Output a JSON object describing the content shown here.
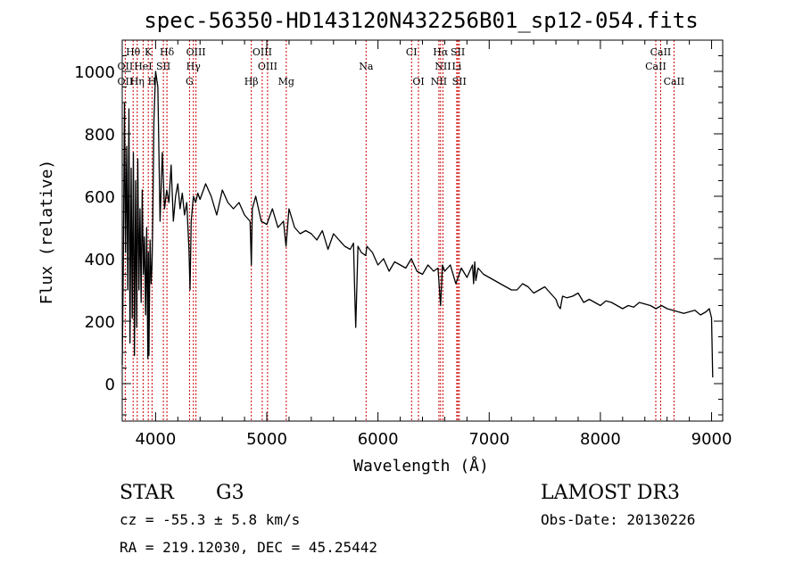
{
  "chart_data": {
    "type": "line",
    "title": "spec-56350-HD143120N432256B01_sp12-054.fits",
    "xlabel": "Wavelength (Å)",
    "ylabel": "Flux (relative)",
    "xlim": [
      3700,
      9100
    ],
    "ylim": [
      -120,
      1100
    ],
    "x_ticks": [
      4000,
      5000,
      6000,
      7000,
      8000,
      9000
    ],
    "y_ticks": [
      0,
      200,
      400,
      600,
      800,
      1000
    ],
    "series": [
      {
        "name": "flux",
        "x": [
          3700,
          3710,
          3720,
          3730,
          3740,
          3750,
          3760,
          3770,
          3780,
          3790,
          3800,
          3810,
          3820,
          3830,
          3840,
          3850,
          3860,
          3870,
          3880,
          3890,
          3900,
          3910,
          3920,
          3930,
          3935,
          3940,
          3950,
          3960,
          3968,
          3975,
          3985,
          4000,
          4020,
          4040,
          4060,
          4080,
          4100,
          4120,
          4140,
          4160,
          4180,
          4200,
          4220,
          4240,
          4260,
          4280,
          4300,
          4310,
          4320,
          4340,
          4360,
          4380,
          4400,
          4450,
          4500,
          4550,
          4600,
          4650,
          4700,
          4750,
          4800,
          4850,
          4861,
          4870,
          4900,
          4950,
          5000,
          5050,
          5100,
          5150,
          5173,
          5200,
          5250,
          5300,
          5350,
          5400,
          5450,
          5500,
          5550,
          5600,
          5650,
          5700,
          5750,
          5780,
          5790,
          5800,
          5820,
          5850,
          5890,
          5900,
          5950,
          6000,
          6050,
          6100,
          6150,
          6200,
          6250,
          6300,
          6350,
          6400,
          6450,
          6500,
          6540,
          6563,
          6580,
          6600,
          6650,
          6700,
          6750,
          6800,
          6850,
          6860,
          6870,
          6880,
          6900,
          6950,
          7000,
          7050,
          7100,
          7150,
          7200,
          7250,
          7300,
          7350,
          7400,
          7450,
          7500,
          7550,
          7600,
          7620,
          7640,
          7660,
          7700,
          7750,
          7800,
          7850,
          7900,
          7950,
          8000,
          8050,
          8100,
          8150,
          8200,
          8250,
          8300,
          8350,
          8400,
          8450,
          8500,
          8550,
          8600,
          8650,
          8700,
          8750,
          8800,
          8850,
          8900,
          8950,
          8980,
          9000,
          9010
        ],
        "y": [
          60,
          380,
          900,
          420,
          760,
          300,
          880,
          130,
          690,
          210,
          740,
          90,
          650,
          180,
          720,
          300,
          560,
          260,
          620,
          350,
          470,
          220,
          500,
          80,
          420,
          90,
          460,
          320,
          380,
          540,
          840,
          1000,
          950,
          520,
          740,
          560,
          620,
          580,
          700,
          520,
          600,
          640,
          560,
          610,
          540,
          580,
          430,
          300,
          520,
          600,
          580,
          610,
          590,
          640,
          600,
          540,
          620,
          580,
          560,
          580,
          540,
          520,
          380,
          560,
          600,
          520,
          510,
          560,
          500,
          520,
          440,
          560,
          500,
          480,
          490,
          480,
          460,
          490,
          430,
          480,
          460,
          440,
          430,
          450,
          300,
          180,
          440,
          420,
          410,
          440,
          420,
          380,
          400,
          360,
          390,
          380,
          370,
          400,
          360,
          350,
          380,
          360,
          370,
          250,
          380,
          360,
          380,
          320,
          370,
          340,
          380,
          320,
          390,
          330,
          370,
          350,
          340,
          330,
          320,
          310,
          300,
          300,
          320,
          310,
          290,
          300,
          310,
          290,
          270,
          250,
          240,
          280,
          275,
          280,
          290,
          260,
          270,
          260,
          250,
          265,
          260,
          250,
          240,
          250,
          245,
          260,
          255,
          250,
          240,
          250,
          240,
          235,
          230,
          225,
          230,
          235,
          220,
          230,
          240,
          210,
          20
        ]
      }
    ],
    "lines_row1": [
      {
        "label": "Hθ",
        "wl": 3798
      },
      {
        "label": "K",
        "wl": 3934
      },
      {
        "label": "Hδ",
        "wl": 4102
      },
      {
        "label": "OIII",
        "wl": 4363
      },
      {
        "label": "OIII",
        "wl": 4959
      },
      {
        "label": "CI",
        "wl": 6302
      },
      {
        "label": "Hα",
        "wl": 6563
      },
      {
        "label": "SII",
        "wl": 6718
      },
      {
        "label": "CaII",
        "wl": 8542
      }
    ],
    "lines_row2": [
      {
        "label": "OII",
        "wl": 3727
      },
      {
        "label": "HeI",
        "wl": 3888
      },
      {
        "label": "SII",
        "wl": 4070
      },
      {
        "label": "Hγ",
        "wl": 4340
      },
      {
        "label": "OIII",
        "wl": 5007
      },
      {
        "label": "Na",
        "wl": 5893
      },
      {
        "label": "NII",
        "wl": 6584
      },
      {
        "label": "Li",
        "wl": 6708
      },
      {
        "label": "CaII",
        "wl": 8498
      }
    ],
    "lines_row3": [
      {
        "label": "OII",
        "wl": 3727
      },
      {
        "label": "Hη",
        "wl": 3835
      },
      {
        "label": "H",
        "wl": 3968
      },
      {
        "label": "G",
        "wl": 4305
      },
      {
        "label": "Hβ",
        "wl": 4861
      },
      {
        "label": "Mg",
        "wl": 5175
      },
      {
        "label": "OI",
        "wl": 6364
      },
      {
        "label": "NII",
        "wl": 6548
      },
      {
        "label": "SII",
        "wl": 6731
      },
      {
        "label": "CaII",
        "wl": 8662
      }
    ]
  },
  "info": {
    "class": "STAR",
    "subclass": "G3",
    "survey": "LAMOST DR3",
    "cz": "cz = -55.3 ± 5.8 km/s",
    "obs_date": "Obs-Date: 20130226",
    "radec": "RA = 219.12030, DEC =  45.25442"
  },
  "colors": {
    "line_marker": "#cc0000",
    "spectrum": "#000000"
  }
}
